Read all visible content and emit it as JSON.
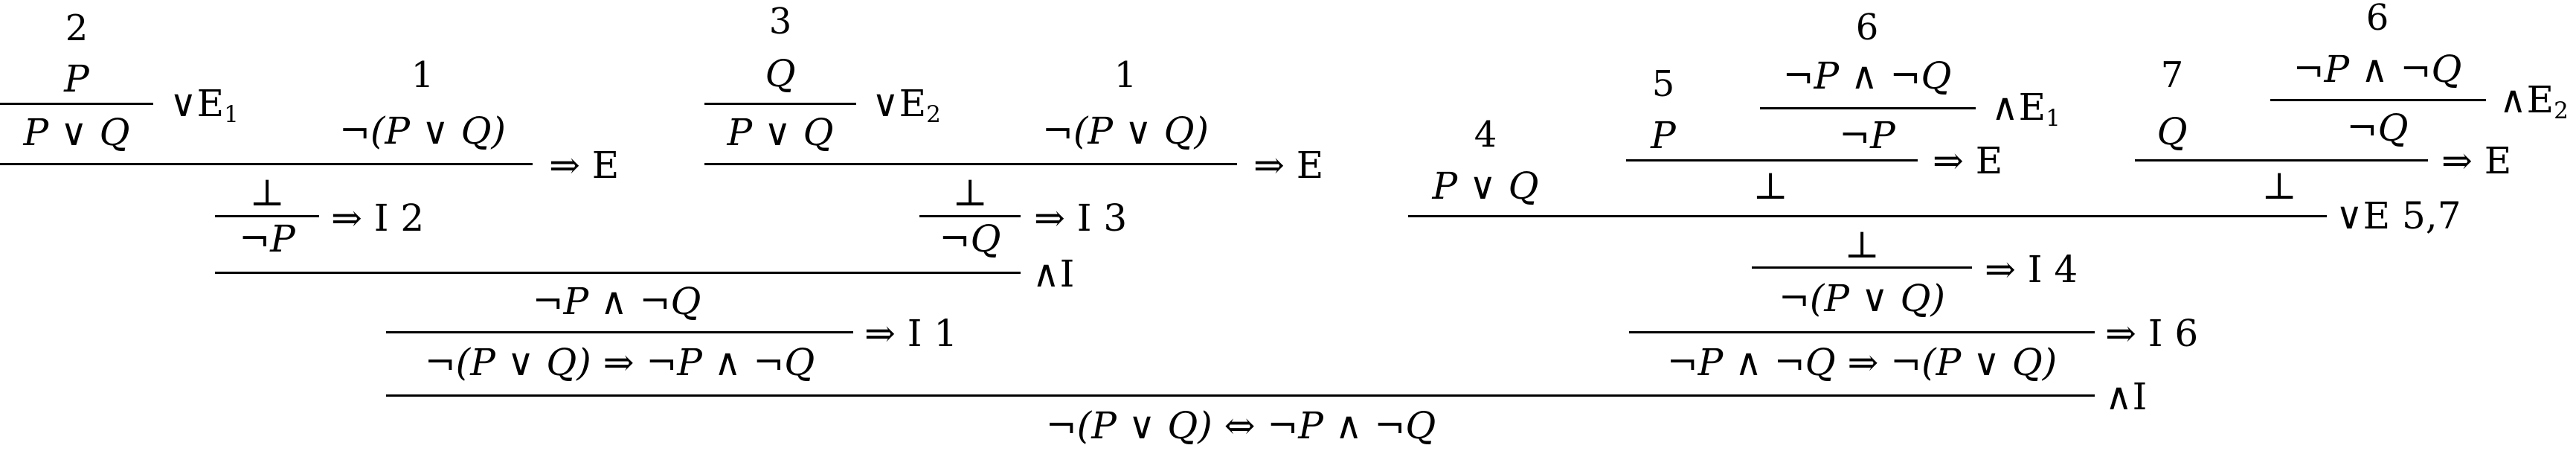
{
  "proof": {
    "left": {
      "a": {
        "hyp_num": "2",
        "hyp": "P",
        "concl": "P ∨ Q",
        "rule": "∨E",
        "rule_sub": "1"
      },
      "b": {
        "hyp_num": "1",
        "hyp": "¬(P ∨ Q)"
      },
      "elim1": {
        "rule": "⇒ E"
      },
      "bot1": "⊥",
      "negP": "¬P",
      "intro2": {
        "rule": "⇒ I 2"
      },
      "c": {
        "hyp_num": "3",
        "hyp": "Q",
        "concl": "P ∨ Q",
        "rule": "∨E",
        "rule_sub": "2"
      },
      "d": {
        "hyp_num": "1",
        "hyp": "¬(P ∨ Q)"
      },
      "elim2": {
        "rule": "⇒ E"
      },
      "bot2": "⊥",
      "negQ": "¬Q",
      "intro3": {
        "rule": "⇒ I 3"
      },
      "andI": {
        "rule": "∧I"
      },
      "conj": "¬P ∧ ¬Q",
      "intro1": {
        "rule": "⇒ I 1"
      },
      "impl": "¬(P ∨ Q) ⇒ ¬P ∧ ¬Q"
    },
    "right": {
      "hyp4_num": "4",
      "hyp4": "P ∨ Q",
      "p_num": "5",
      "p": "P",
      "h6a_num": "6",
      "h6a": "¬P ∧ ¬Q",
      "and1": {
        "rule": "∧E",
        "rule_sub": "1"
      },
      "negP": "¬P",
      "elimP": {
        "rule": "⇒ E"
      },
      "botP": "⊥",
      "q_num": "7",
      "q": "Q",
      "h6b_num": "6",
      "h6b": "¬P ∧ ¬Q",
      "and2": {
        "rule": "∧E",
        "rule_sub": "2"
      },
      "negQ": "¬Q",
      "elimQ": {
        "rule": "⇒ E"
      },
      "botQ": "⊥",
      "orE": {
        "rule": "∨E 5,7"
      },
      "bot": "⊥",
      "intro4": {
        "rule": "⇒ I 4"
      },
      "negOr": "¬(P ∨ Q)",
      "intro6": {
        "rule": "⇒ I 6"
      },
      "impl": "¬P ∧ ¬Q ⇒ ¬(P ∨ Q)"
    },
    "final": {
      "rule": "∧I",
      "concl": "¬(P ∨ Q) ⇔ ¬P ∧ ¬Q"
    }
  }
}
